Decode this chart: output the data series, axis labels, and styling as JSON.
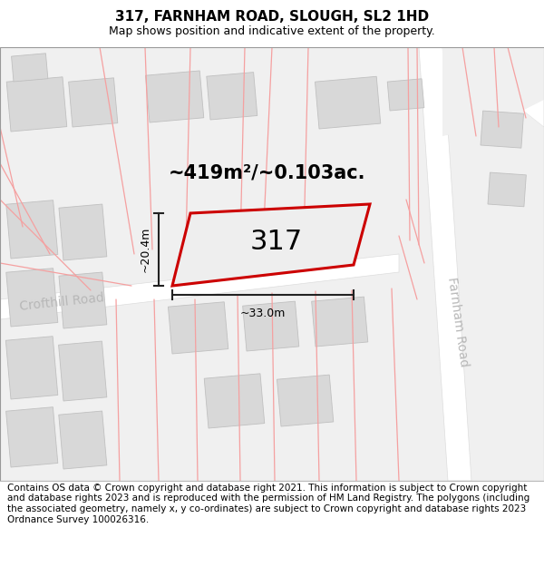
{
  "title": "317, FARNHAM ROAD, SLOUGH, SL2 1HD",
  "subtitle": "Map shows position and indicative extent of the property.",
  "footer": "Contains OS data © Crown copyright and database right 2021. This information is subject to Crown copyright and database rights 2023 and is reproduced with the permission of HM Land Registry. The polygons (including the associated geometry, namely x, y co-ordinates) are subject to Crown copyright and database rights 2023 Ordnance Survey 100026316.",
  "area_label": "~419m²/~0.103ac.",
  "width_label": "~33.0m",
  "height_label": "~20.4m",
  "number_label": "317",
  "bg_color": "#f0f0f0",
  "road_white": "#ffffff",
  "building_fill": "#d8d8d8",
  "building_edge": "#c0c0c0",
  "plot_fill": "#e8e8e8",
  "plot_stroke": "#cc0000",
  "pink": "#f5a0a0",
  "dim_color": "#222222",
  "road_label_color": "#b8b8b8",
  "title_fontsize": 11,
  "subtitle_fontsize": 9,
  "footer_fontsize": 7.5,
  "area_fontsize": 15,
  "number_fontsize": 22,
  "dim_fontsize": 9,
  "road_label_fontsize": 10
}
